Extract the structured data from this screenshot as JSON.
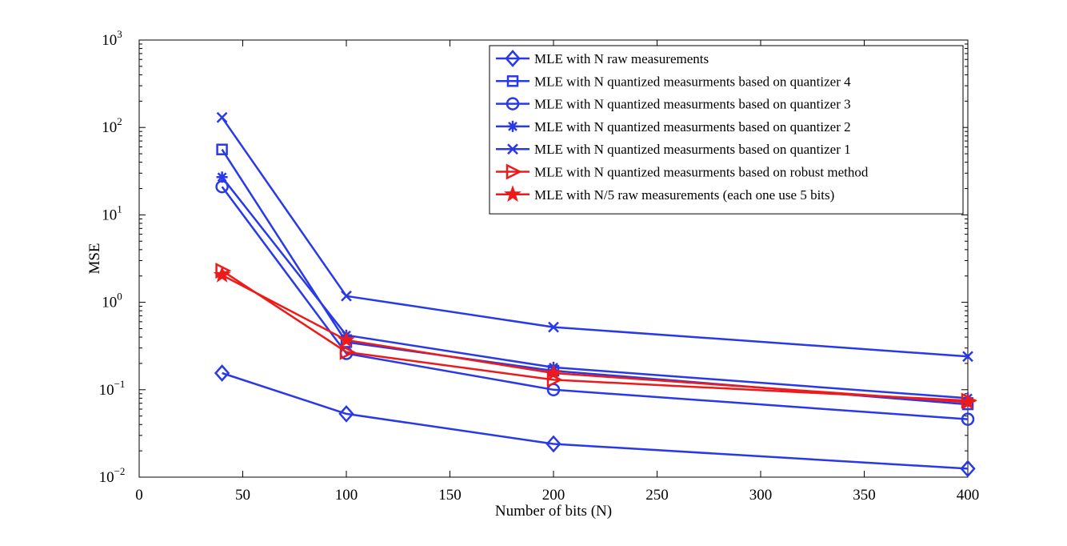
{
  "chart_data": {
    "type": "line",
    "title": "",
    "xlabel": "Number of bits (N)",
    "ylabel": "MSE",
    "xlim": [
      0,
      400
    ],
    "ylim": [
      0.01,
      1000
    ],
    "yscale": "log",
    "x_ticks": [
      0,
      50,
      100,
      150,
      200,
      250,
      300,
      350,
      400
    ],
    "y_ticks": [
      {
        "base": "10",
        "exp": "−2",
        "value": 0.01
      },
      {
        "base": "10",
        "exp": "−1",
        "value": 0.1
      },
      {
        "base": "10",
        "exp": "0",
        "value": 1
      },
      {
        "base": "10",
        "exp": "1",
        "value": 10
      },
      {
        "base": "10",
        "exp": "2",
        "value": 100
      },
      {
        "base": "10",
        "exp": "3",
        "value": 1000
      }
    ],
    "x": [
      40,
      100,
      200,
      400
    ],
    "legend_position": "top-right",
    "grid": false,
    "series": [
      {
        "name": "MLE with N raw measurements",
        "color": "#2a39e8",
        "marker": "diamond",
        "values": [
          0.155,
          0.053,
          0.024,
          0.0125
        ]
      },
      {
        "name": "MLE with N quantized measurments based on quantizer 4",
        "color": "#2a39e8",
        "marker": "square",
        "values": [
          56,
          0.35,
          0.165,
          0.068
        ]
      },
      {
        "name": "MLE with N quantized measurments based on quantizer 3",
        "color": "#2a39e8",
        "marker": "circle",
        "values": [
          21,
          0.26,
          0.1,
          0.046
        ]
      },
      {
        "name": "MLE with N quantized measurments based on quantizer 2",
        "color": "#2a39e8",
        "marker": "asterisk",
        "values": [
          27,
          0.42,
          0.18,
          0.08
        ]
      },
      {
        "name": "MLE with N quantized measurments based on quantizer 1",
        "color": "#2a39e8",
        "marker": "x",
        "values": [
          130,
          1.18,
          0.52,
          0.24
        ]
      },
      {
        "name": "MLE with N quantized measurments based on robust method",
        "color": "#ee1a1a",
        "marker": "triangle-right",
        "values": [
          2.3,
          0.27,
          0.13,
          0.075
        ]
      },
      {
        "name": "MLE with N/5 raw measurements (each one use 5 bits)",
        "color": "#ee1a1a",
        "marker": "star",
        "values": [
          2.05,
          0.37,
          0.155,
          0.072
        ]
      }
    ]
  }
}
